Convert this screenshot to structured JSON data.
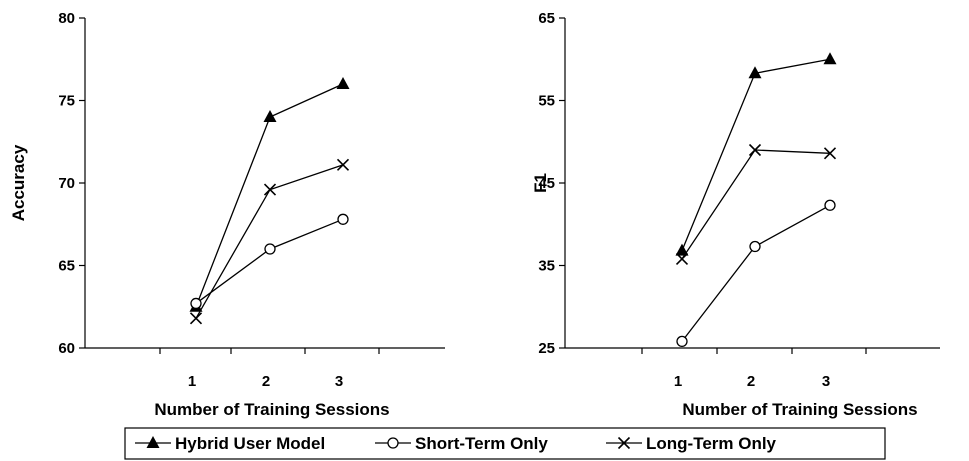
{
  "chart_data": [
    {
      "type": "line",
      "xlabel": "Number of Training Sessions",
      "ylabel": "Accuracy",
      "categories": [
        "1",
        "2",
        "3"
      ],
      "ylim": [
        60,
        80
      ],
      "yticks": [
        "60",
        "65",
        "70",
        "75",
        "80"
      ],
      "series": [
        {
          "name": "Hybrid User Model",
          "marker": "triangle",
          "values": [
            62.5,
            74.0,
            76.0
          ]
        },
        {
          "name": "Short-Term Only",
          "marker": "circle",
          "values": [
            62.7,
            66.0,
            67.8
          ]
        },
        {
          "name": "Long-Term Only",
          "marker": "x",
          "values": [
            61.8,
            69.6,
            71.1
          ]
        }
      ]
    },
    {
      "type": "line",
      "xlabel": "Number of Training Sessions",
      "ylabel": "F1",
      "categories": [
        "1",
        "2",
        "3"
      ],
      "ylim": [
        25,
        65
      ],
      "yticks": [
        "25",
        "35",
        "45",
        "55",
        "65"
      ],
      "series": [
        {
          "name": "Hybrid User Model",
          "marker": "triangle",
          "values": [
            36.8,
            58.3,
            60.0
          ]
        },
        {
          "name": "Short-Term Only",
          "marker": "circle",
          "values": [
            25.8,
            37.3,
            42.3
          ]
        },
        {
          "name": "Long-Term Only",
          "marker": "x",
          "values": [
            35.8,
            49.0,
            48.6
          ]
        }
      ]
    }
  ],
  "legend": {
    "items": [
      {
        "label": "Hybrid User Model",
        "marker": "triangle"
      },
      {
        "label": "Short-Term Only",
        "marker": "circle"
      },
      {
        "label": "Long-Term Only",
        "marker": "x"
      }
    ]
  }
}
